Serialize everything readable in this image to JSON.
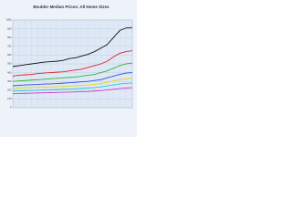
{
  "chart_data": {
    "type": "line",
    "title": "Boulder Median Prices: All Home Sizes",
    "categories": [
      null,
      null,
      null,
      null,
      null,
      null,
      null,
      null,
      null,
      null,
      null,
      null,
      null,
      null,
      null,
      null,
      null,
      null,
      null,
      null
    ],
    "series": [
      {
        "color": "#111111",
        "values": [
          470,
          480,
          490,
          500,
          510,
          520,
          525,
          530,
          540,
          560,
          570,
          590,
          610,
          640,
          680,
          720,
          800,
          880,
          910,
          915
        ]
      },
      {
        "color": "#e0202a",
        "values": [
          360,
          370,
          375,
          380,
          390,
          395,
          400,
          405,
          410,
          420,
          430,
          440,
          460,
          480,
          500,
          530,
          580,
          620,
          640,
          650
        ]
      },
      {
        "color": "#2fb43a",
        "values": [
          300,
          305,
          310,
          315,
          320,
          325,
          330,
          335,
          340,
          345,
          350,
          360,
          370,
          380,
          400,
          420,
          450,
          480,
          500,
          510
        ]
      },
      {
        "color": "#2a4fd8",
        "values": [
          250,
          255,
          260,
          262,
          265,
          270,
          272,
          275,
          280,
          285,
          290,
          295,
          300,
          310,
          320,
          340,
          360,
          380,
          395,
          400
        ]
      },
      {
        "color": "#e8d21a",
        "values": [
          220,
          225,
          228,
          230,
          232,
          235,
          238,
          240,
          242,
          245,
          250,
          255,
          260,
          265,
          275,
          290,
          305,
          320,
          330,
          335
        ]
      },
      {
        "color": "#22c8d8",
        "values": [
          190,
          192,
          195,
          197,
          200,
          202,
          205,
          207,
          210,
          212,
          215,
          220,
          225,
          230,
          238,
          248,
          260,
          270,
          278,
          282
        ]
      },
      {
        "color": "#d03ad0",
        "values": [
          160,
          162,
          164,
          166,
          168,
          170,
          172,
          174,
          176,
          178,
          180,
          183,
          186,
          190,
          195,
          202,
          210,
          218,
          224,
          228
        ]
      }
    ],
    "ylim": [
      0,
      1000
    ],
    "yticks": [
      0,
      100,
      200,
      300,
      400,
      500,
      600,
      700,
      800,
      900,
      1000
    ],
    "grid": true
  }
}
